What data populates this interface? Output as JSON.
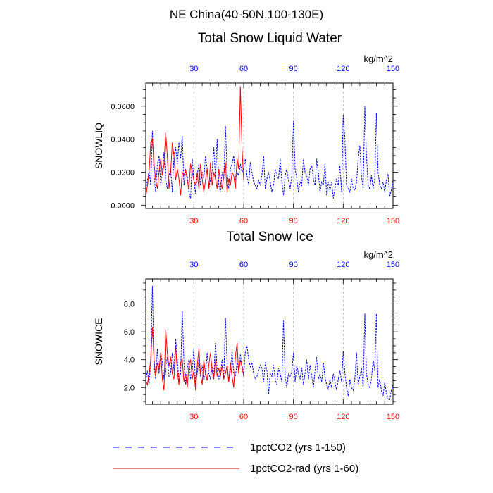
{
  "header": {
    "region": "NE China(40-50N,100-130E)"
  },
  "legend": {
    "items": [
      {
        "label": "1pctCO2 (yrs 1-150)",
        "color": "#0000ff",
        "dash": "dashed"
      },
      {
        "label": "1pctCO2-rad (yrs 1-60)",
        "color": "#ff0000",
        "dash": "solid"
      }
    ]
  },
  "chart_data": [
    {
      "type": "line",
      "title": "Total Snow Liquid Water",
      "ylabel": "SNOWLIQ",
      "units_label": "kg/m^2",
      "xlim": [
        1,
        150
      ],
      "ylim": [
        -0.002,
        0.074
      ],
      "yticks": [
        0.0,
        0.02,
        0.04,
        0.06
      ],
      "ytick_labels": [
        "0.0000",
        "0.0200",
        "0.0400",
        "0.0600"
      ],
      "xticks": [
        30,
        60,
        90,
        120,
        150
      ],
      "xtick_labels": [
        "30",
        "60",
        "90",
        "120",
        "150"
      ],
      "top_axis_color": "#0000ff",
      "bottom_axis_color": "#ff0000",
      "grid_x": true,
      "series": [
        {
          "name": "1pctCO2 (yrs 1-150)",
          "color": "#0000ff",
          "dash": "dashed",
          "values": [
            0.01,
            0.015,
            0.021,
            0.012,
            0.045,
            0.018,
            0.008,
            0.025,
            0.03,
            0.012,
            0.02,
            0.032,
            0.015,
            0.01,
            0.018,
            0.022,
            0.008,
            0.03,
            0.035,
            0.025,
            0.038,
            0.028,
            0.042,
            0.012,
            0.02,
            0.018,
            0.008,
            0.004,
            0.028,
            0.015,
            0.007,
            0.018,
            0.025,
            0.012,
            0.02,
            0.016,
            0.03,
            0.022,
            0.01,
            0.016,
            0.02,
            0.035,
            0.017,
            0.04,
            0.012,
            0.008,
            0.02,
            0.015,
            0.048,
            0.02,
            0.01,
            0.022,
            0.025,
            0.03,
            0.015,
            0.02,
            0.018,
            0.025,
            0.02,
            0.022,
            0.028,
            0.018,
            0.012,
            0.026,
            0.02,
            0.014,
            0.012,
            0.01,
            0.015,
            0.012,
            0.018,
            0.03,
            0.01,
            0.016,
            0.02,
            0.014,
            0.008,
            0.012,
            0.022,
            0.018,
            0.016,
            0.028,
            0.014,
            0.006,
            0.018,
            0.022,
            0.015,
            0.01,
            0.018,
            0.051,
            0.022,
            0.016,
            0.008,
            0.014,
            0.012,
            0.028,
            0.02,
            0.018,
            0.012,
            0.022,
            0.024,
            0.016,
            0.012,
            0.028,
            0.02,
            0.008,
            0.014,
            0.012,
            0.025,
            0.006,
            0.014,
            0.009,
            0.014,
            0.004,
            0.01,
            0.016,
            0.012,
            0.024,
            0.008,
            0.055,
            0.04,
            0.012,
            0.01,
            0.008,
            0.016,
            0.01,
            0.009,
            0.014,
            0.028,
            0.036,
            0.018,
            0.01,
            0.06,
            0.03,
            0.012,
            0.01,
            0.018,
            0.01,
            0.016,
            0.056,
            0.02,
            0.012,
            0.01,
            0.014,
            0.008,
            0.015,
            0.019,
            0.005,
            0.009,
            0.016
          ]
        },
        {
          "name": "1pctCO2-rad (yrs 1-60)",
          "color": "#ff0000",
          "dash": "solid",
          "values": [
            0.005,
            0.012,
            0.02,
            0.038,
            0.04,
            0.025,
            0.015,
            0.01,
            0.02,
            0.028,
            0.018,
            0.025,
            0.044,
            0.03,
            0.01,
            0.02,
            0.038,
            0.03,
            0.015,
            0.022,
            0.016,
            0.006,
            0.02,
            0.018,
            0.022,
            0.015,
            0.01,
            0.025,
            0.02,
            0.015,
            0.012,
            0.02,
            0.01,
            0.025,
            0.016,
            0.008,
            0.015,
            0.022,
            0.01,
            0.026,
            0.012,
            0.02,
            0.016,
            0.01,
            0.022,
            0.014,
            0.01,
            0.018,
            0.026,
            0.008,
            0.016,
            0.012,
            0.02,
            0.018,
            0.01,
            0.028,
            0.022,
            0.072,
            0.035,
            0.015
          ]
        }
      ]
    },
    {
      "type": "line",
      "title": "Total Snow Ice",
      "ylabel": "SNOWICE",
      "units_label": "kg/m^2",
      "xlim": [
        1,
        150
      ],
      "ylim": [
        0.8,
        9.8
      ],
      "yticks": [
        2.0,
        4.0,
        6.0,
        8.0
      ],
      "ytick_labels": [
        "2.0",
        "4.0",
        "6.0",
        "8.0"
      ],
      "xticks": [
        30,
        60,
        90,
        120,
        150
      ],
      "xtick_labels": [
        "30",
        "60",
        "90",
        "120",
        "150"
      ],
      "top_axis_color": "#0000ff",
      "bottom_axis_color": "#ff0000",
      "grid_x": true,
      "series": [
        {
          "name": "1pctCO2 (yrs 1-150)",
          "color": "#0000ff",
          "dash": "dashed",
          "values": [
            2.5,
            3.2,
            2.2,
            4.0,
            9.3,
            3.5,
            2.6,
            4.8,
            3.0,
            4.5,
            3.8,
            2.6,
            3.5,
            4.2,
            2.8,
            3.0,
            4.5,
            3.2,
            5.5,
            4.0,
            2.5,
            3.0,
            7.5,
            3.8,
            2.2,
            3.4,
            4.0,
            2.6,
            3.2,
            4.8,
            2.2,
            3.0,
            4.0,
            2.8,
            3.6,
            2.5,
            3.0,
            4.5,
            3.0,
            2.6,
            3.5,
            2.8,
            5.2,
            3.4,
            2.6,
            3.0,
            4.0,
            2.6,
            7.0,
            3.8,
            2.4,
            3.2,
            4.6,
            3.0,
            2.8,
            3.8,
            3.2,
            4.4,
            3.6,
            3.0,
            4.5,
            5.0,
            4.0,
            3.5,
            3.8,
            3.0,
            2.6,
            2.8,
            3.2,
            3.6,
            3.4,
            2.4,
            3.8,
            3.2,
            1.5,
            3.0,
            2.8,
            3.6,
            2.6,
            2.2,
            3.4,
            3.0,
            2.4,
            6.8,
            2.8,
            2.0,
            3.0,
            2.8,
            3.2,
            4.5,
            2.4,
            3.6,
            3.0,
            2.6,
            3.4,
            2.2,
            3.0,
            4.0,
            2.6,
            3.6,
            2.8,
            2.0,
            3.2,
            4.2,
            2.6,
            3.0,
            2.4,
            3.8,
            2.8,
            2.2,
            1.9,
            2.6,
            2.0,
            3.0,
            2.4,
            1.8,
            2.6,
            3.2,
            2.4,
            4.6,
            3.0,
            2.0,
            1.4,
            2.6,
            2.0,
            1.8,
            2.6,
            4.5,
            2.2,
            2.8,
            3.4,
            2.0,
            7.3,
            3.0,
            2.2,
            2.0,
            2.6,
            4.0,
            3.2,
            7.3,
            2.0,
            2.6,
            1.8,
            1.4,
            2.4,
            1.6,
            1.2,
            1.1,
            1.8,
            2.2
          ]
        },
        {
          "name": "1pctCO2-rad (yrs 1-60)",
          "color": "#ff0000",
          "dash": "solid",
          "values": [
            2.5,
            2.2,
            3.0,
            4.0,
            6.3,
            4.0,
            2.8,
            3.8,
            3.2,
            4.5,
            2.6,
            1.8,
            6.2,
            4.5,
            3.5,
            4.2,
            3.0,
            2.6,
            5.0,
            3.2,
            2.2,
            3.8,
            4.0,
            2.4,
            3.0,
            2.0,
            3.6,
            4.0,
            2.6,
            3.2,
            1.8,
            3.5,
            4.8,
            3.0,
            2.2,
            4.0,
            3.0,
            2.5,
            3.6,
            4.5,
            3.2,
            2.6,
            4.0,
            2.8,
            3.4,
            2.8,
            3.6,
            2.6,
            3.0,
            3.6,
            2.4,
            3.8,
            2.8,
            2.0,
            4.2,
            5.2,
            3.0,
            4.0,
            3.5,
            2.8
          ]
        }
      ]
    }
  ]
}
